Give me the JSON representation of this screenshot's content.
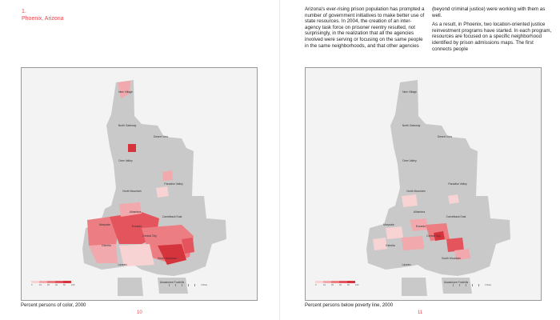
{
  "chapter": {
    "number": "1.",
    "title": "Phoenix, Arizona"
  },
  "body_text": {
    "column1": "Arizona's ever-rising prison population has prompted a number of government initiatives to make better use of state resources. In 2004, the creation of an inter-agency task force on prisoner reentry resulted, not surprisingly, in the realization that all the agencies involved were serving or focusing on the same people in the same neighborhoods, and that other agencies",
    "column2_p1": "(beyond criminal justice) were working with them as well.",
    "column2_p2": "As a result, in Phoenix, two location-oriented justice reinvestment programs have started. In each program, resources are focused on a specific neighborhood identified by prison admissions maps. The first connects people"
  },
  "left_map": {
    "caption": "Percent persons of color, 2000",
    "page_number": "10",
    "places": {
      "new_village": "New Village",
      "north_gateway": "North Gateway",
      "desert_view": "Desert View",
      "deer_valley": "Deer Valley",
      "paradise_valley": "Paradise Valley",
      "north_mountain": "North Mountain",
      "alhambra": "Alhambra",
      "camelback_east": "Camelback East",
      "maryvale": "Maryvale",
      "encanto": "Encanto",
      "central_city": "Central City",
      "estrella": "Estrella",
      "south_mountain": "South Mountain",
      "laveen": "Laveen",
      "ahwatukee_foothills": "Ahwatukee Foothills"
    }
  },
  "right_map": {
    "caption": "Percent persons below poverty line, 2000",
    "page_number": "11",
    "places": {
      "new_village": "New Village",
      "north_gateway": "North Gateway",
      "desert_view": "Desert View",
      "deer_valley": "Deer Valley",
      "paradise_valley": "Paradise Valley",
      "north_mountain": "North Mountain",
      "alhambra": "Alhambra",
      "camelback_east": "Camelback East",
      "maryvale": "Maryvale",
      "encanto": "Encanto",
      "central_city": "Central City",
      "estrella": "Estrella",
      "south_mountain": "South Mountain",
      "laveen": "Laveen",
      "ahwatukee_foothills": "Ahwatukee Foothills"
    }
  },
  "legend": {
    "ticks": [
      "0",
      "10",
      "25",
      "40",
      "60",
      "100"
    ],
    "colors": [
      "#f7d3d4",
      "#f2a9ad",
      "#ec7d83",
      "#e4545c",
      "#d6343c"
    ]
  },
  "scale_label": "4 Miles",
  "colors": {
    "accent": "#e8464e",
    "land": "#c9c9c9",
    "background": "#f3f3f3"
  }
}
